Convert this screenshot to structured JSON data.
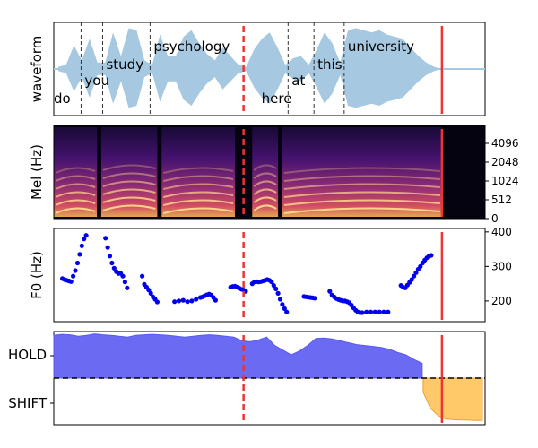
{
  "chart_data": [
    {
      "type": "area",
      "ylabel": "waveform",
      "words": [
        {
          "text": "do",
          "t": 0.0
        },
        {
          "text": "you",
          "t": 0.03
        },
        {
          "text": "study",
          "t": 0.08
        },
        {
          "text": "psychology",
          "t": 0.19
        },
        {
          "text": "here",
          "t": 0.44
        },
        {
          "text": "at",
          "t": 0.51
        },
        {
          "text": "this",
          "t": 0.57
        },
        {
          "text": "university",
          "t": 0.64
        }
      ],
      "envelope": [
        0.05,
        0.1,
        0.55,
        0.2,
        0.7,
        0.15,
        0.15,
        0.85,
        0.3,
        0.95,
        0.9,
        0.2,
        0.1,
        0.8,
        0.3,
        0.3,
        0.75,
        0.9,
        0.6,
        0.35,
        0.2,
        0.5,
        0.3,
        0.1,
        0.05,
        0.45,
        0.7,
        0.85,
        0.5,
        0.1,
        0.25,
        0.3,
        0.1,
        0.45,
        0.85,
        0.6,
        0.15,
        0.9,
        0.95,
        0.9,
        0.85,
        0.9,
        0.8,
        0.75,
        0.7,
        0.5,
        0.3,
        0.15,
        0.05,
        0.0
      ],
      "current_marker_t": 0.44,
      "end_marker_t": 0.9,
      "colors": {
        "waveform": "#a6c8e0",
        "word_boundary": "#333333",
        "current_marker": "#ee3333",
        "end_marker": "#ee3333"
      }
    },
    {
      "type": "heatmap",
      "ylabel": "Mel (Hz)",
      "yticks": [
        "0",
        "512",
        "1024",
        "2048",
        "4096"
      ],
      "colormap": "magma",
      "speech_segments": [
        [
          0.0,
          0.1
        ],
        [
          0.11,
          0.24
        ],
        [
          0.25,
          0.42
        ],
        [
          0.46,
          0.52
        ],
        [
          0.53,
          0.9
        ]
      ],
      "silence_after_t": 0.9
    },
    {
      "type": "scatter",
      "ylabel": "F0 (Hz)",
      "yticks": [
        200,
        300,
        400
      ],
      "ylim": [
        140,
        410
      ],
      "series": [
        {
          "values": [
            [
              0.02,
              265
            ],
            [
              0.025,
              262
            ],
            [
              0.03,
              260
            ],
            [
              0.035,
              258
            ],
            [
              0.04,
              256
            ],
            [
              0.045,
              272
            ],
            [
              0.05,
              288
            ],
            [
              0.055,
              310
            ],
            [
              0.06,
              335
            ],
            [
              0.065,
              360
            ],
            [
              0.07,
              380
            ],
            [
              0.075,
              390
            ],
            [
              0.12,
              382
            ],
            [
              0.125,
              355
            ],
            [
              0.13,
              330
            ],
            [
              0.135,
              310
            ],
            [
              0.14,
              295
            ],
            [
              0.145,
              285
            ],
            [
              0.15,
              280
            ],
            [
              0.155,
              280
            ],
            [
              0.16,
              272
            ],
            [
              0.165,
              255
            ],
            [
              0.17,
              238
            ],
            [
              0.205,
              272
            ],
            [
              0.21,
              248
            ],
            [
              0.215,
              240
            ],
            [
              0.22,
              232
            ],
            [
              0.225,
              222
            ],
            [
              0.23,
              212
            ],
            [
              0.235,
              205
            ],
            [
              0.24,
              197
            ],
            [
              0.28,
              198
            ],
            [
              0.29,
              200
            ],
            [
              0.3,
              202
            ],
            [
              0.31,
              198
            ],
            [
              0.32,
              200
            ],
            [
              0.33,
              205
            ],
            [
              0.34,
              210
            ],
            [
              0.345,
              212
            ],
            [
              0.35,
              215
            ],
            [
              0.355,
              218
            ],
            [
              0.36,
              220
            ],
            [
              0.365,
              217
            ],
            [
              0.37,
              210
            ],
            [
              0.375,
              202
            ],
            [
              0.41,
              240
            ],
            [
              0.415,
              242
            ],
            [
              0.42,
              243
            ],
            [
              0.425,
              240
            ],
            [
              0.43,
              237
            ],
            [
              0.435,
              234
            ],
            [
              0.44,
              232
            ],
            [
              0.445,
              228
            ],
            [
              0.46,
              250
            ],
            [
              0.465,
              255
            ],
            [
              0.47,
              256
            ],
            [
              0.475,
              255
            ],
            [
              0.48,
              256
            ],
            [
              0.485,
              258
            ],
            [
              0.49,
              260
            ],
            [
              0.495,
              262
            ],
            [
              0.5,
              260
            ],
            [
              0.505,
              255
            ],
            [
              0.51,
              245
            ],
            [
              0.515,
              235
            ],
            [
              0.52,
              222
            ],
            [
              0.525,
              205
            ],
            [
              0.53,
              190
            ],
            [
              0.535,
              178
            ],
            [
              0.54,
              168
            ],
            [
              0.58,
              213
            ],
            [
              0.585,
              212
            ],
            [
              0.59,
              211
            ],
            [
              0.595,
              210
            ],
            [
              0.6,
              209
            ],
            [
              0.605,
              208
            ],
            [
              0.64,
              228
            ],
            [
              0.645,
              217
            ],
            [
              0.65,
              212
            ],
            [
              0.655,
              207
            ],
            [
              0.66,
              204
            ],
            [
              0.665,
              202
            ],
            [
              0.67,
              200
            ],
            [
              0.675,
              200
            ],
            [
              0.68,
              198
            ],
            [
              0.685,
              195
            ],
            [
              0.69,
              188
            ],
            [
              0.695,
              180
            ],
            [
              0.7,
              173
            ],
            [
              0.705,
              168
            ],
            [
              0.71,
              166
            ],
            [
              0.715,
              166
            ],
            [
              0.725,
              168
            ],
            [
              0.735,
              168
            ],
            [
              0.745,
              168
            ],
            [
              0.755,
              168
            ],
            [
              0.765,
              168
            ],
            [
              0.775,
              168
            ],
            [
              0.805,
              245
            ],
            [
              0.81,
              240
            ],
            [
              0.815,
              238
            ],
            [
              0.82,
              246
            ],
            [
              0.825,
              254
            ],
            [
              0.83,
              262
            ],
            [
              0.835,
              272
            ],
            [
              0.84,
              282
            ],
            [
              0.845,
              292
            ],
            [
              0.85,
              300
            ],
            [
              0.855,
              310
            ],
            [
              0.86,
              318
            ],
            [
              0.865,
              325
            ],
            [
              0.87,
              330
            ],
            [
              0.875,
              332
            ]
          ]
        }
      ],
      "colors": {
        "points": "#0000ee"
      }
    },
    {
      "type": "area",
      "yticks": [
        "HOLD",
        "SHIFT"
      ],
      "hold_level": [
        0.92,
        0.94,
        0.93,
        0.9,
        0.92,
        0.95,
        0.93,
        0.92,
        0.9,
        0.88,
        0.92,
        0.93,
        0.94,
        0.93,
        0.92,
        0.9,
        0.88,
        0.9,
        0.92,
        0.93,
        0.92,
        0.9,
        0.88,
        0.8,
        0.78,
        0.82,
        0.88,
        0.7,
        0.6,
        0.5,
        0.58,
        0.7,
        0.85,
        0.86,
        0.84,
        0.8,
        0.76,
        0.72,
        0.7,
        0.68,
        0.66,
        0.62,
        0.55,
        0.5,
        0.4,
        0.32
      ],
      "shift_level": [
        0.3,
        0.65,
        0.8,
        0.88,
        0.89,
        0.9,
        0.9,
        0.91,
        0.91
      ],
      "shift_start_t": 0.9,
      "colors": {
        "hold": "#5a5af2",
        "shift": "#ffc35a",
        "threshold": "#000000"
      }
    }
  ]
}
